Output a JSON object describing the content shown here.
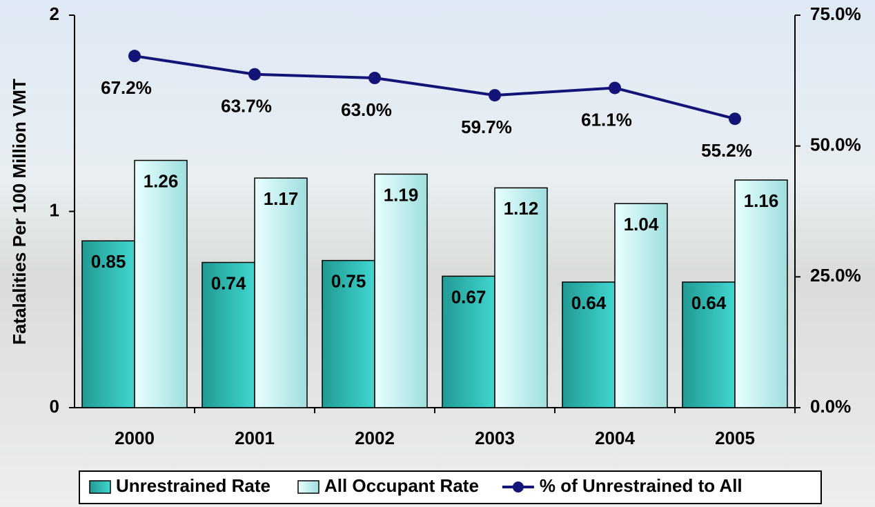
{
  "chart_data": {
    "type": "bar-line",
    "y_label": "Fatalalities Per 100 Million VMT",
    "categories": [
      "2000",
      "2001",
      "2002",
      "2003",
      "2004",
      "2005"
    ],
    "series": [
      {
        "name": "Unrestrained Rate",
        "type": "bar",
        "color": "#2fbdb5",
        "values": [
          0.85,
          0.74,
          0.75,
          0.67,
          0.64,
          0.64
        ]
      },
      {
        "name": "All Occupant Rate",
        "type": "bar",
        "color": "#c9fafa",
        "values": [
          1.26,
          1.17,
          1.19,
          1.12,
          1.04,
          1.16
        ]
      },
      {
        "name": "% of Unrestrained to All",
        "type": "line",
        "axis": "y2",
        "color": "#141478",
        "values": [
          67.2,
          63.7,
          63.0,
          59.7,
          61.1,
          55.2
        ],
        "value_labels": [
          "67.2%",
          "63.7%",
          "63.0%",
          "59.7%",
          "61.1%",
          "55.2%"
        ]
      }
    ],
    "ylim": [
      0,
      2
    ],
    "yticks": [
      0,
      1,
      2
    ],
    "y2lim": [
      0,
      75
    ],
    "y2ticks": [
      {
        "value": 0,
        "label": "0.0%"
      },
      {
        "value": 25,
        "label": "25.0%"
      },
      {
        "value": 50,
        "label": "50.0%"
      },
      {
        "value": 75,
        "label": "75.0%"
      }
    ],
    "legend": "bottom"
  }
}
